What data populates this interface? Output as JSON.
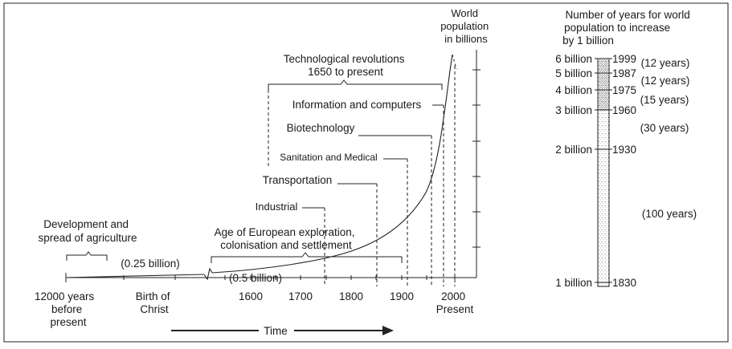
{
  "left_panel": {
    "y_axis_label": [
      "World",
      "population",
      "in billions"
    ],
    "x_axis_ticks": [
      {
        "label": [
          "12000 years",
          "before",
          "present"
        ]
      },
      {
        "label": [
          "Birth of",
          "Christ"
        ]
      },
      {
        "label": [
          "1600"
        ]
      },
      {
        "label": [
          "1700"
        ]
      },
      {
        "label": [
          "1800"
        ]
      },
      {
        "label": [
          "1900"
        ]
      },
      {
        "label": [
          "2000",
          "Present"
        ]
      }
    ],
    "time_label": "Time",
    "agriculture_label": [
      "Development and",
      "spread of agriculture"
    ],
    "pop_quarter": "(0.25 billion)",
    "pop_half": "(0.5 billion)",
    "exploration_label": [
      "Age of European exploration,",
      "colonisation and settlement"
    ],
    "revolutions_label": [
      "Technological revolutions",
      "1650 to present"
    ],
    "revolutions": [
      {
        "label": "Industrial"
      },
      {
        "label": "Transportation"
      },
      {
        "label": "Sanitation and Medical"
      },
      {
        "label": "Biotechnology"
      },
      {
        "label": "Information and computers"
      }
    ]
  },
  "right_panel": {
    "title": [
      "Number of years for world",
      "population to increase",
      "by 1 billion"
    ],
    "milestones": [
      {
        "billions": "1 billion",
        "year": "1830"
      },
      {
        "billions": "2 billion",
        "year": "1930"
      },
      {
        "billions": "3 billion",
        "year": "1960"
      },
      {
        "billions": "4 billion",
        "year": "1975"
      },
      {
        "billions": "5 billion",
        "year": "1987"
      },
      {
        "billions": "6 billion",
        "year": "1999"
      }
    ],
    "intervals": [
      "(100 years)",
      "(30 years)",
      "(15 years)",
      "(12 years)",
      "(12 years)"
    ]
  }
}
